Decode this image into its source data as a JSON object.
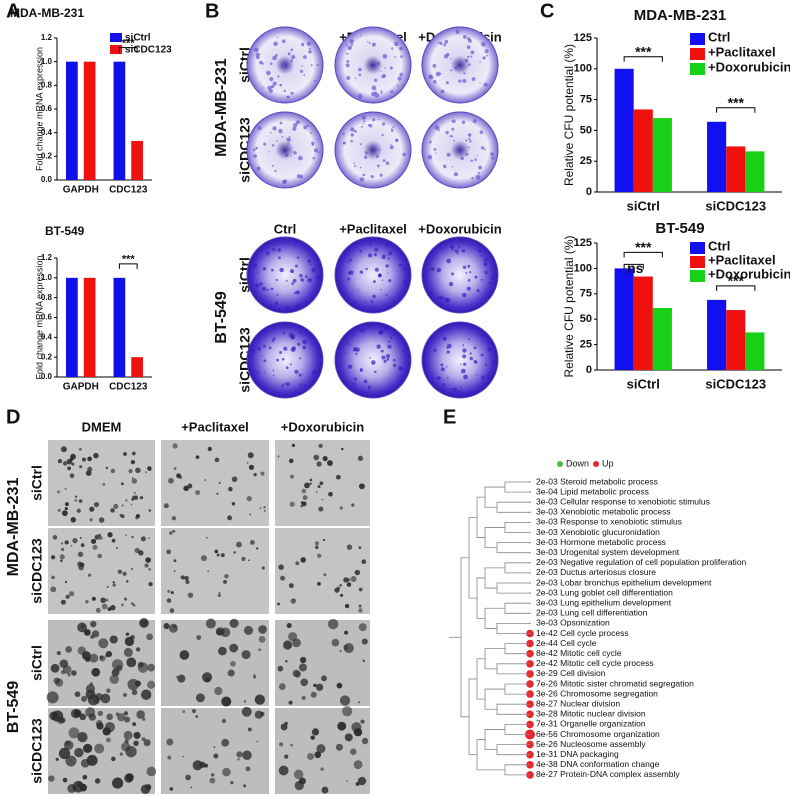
{
  "panel_labels": [
    "A",
    "B",
    "C",
    "D",
    "E"
  ],
  "chart_data": [
    {
      "type": "bar",
      "title": "MDA-MB-231",
      "y_label": "Fold change mRNA expression",
      "categories": [
        "GAPDH",
        "CDC123"
      ],
      "series": [
        {
          "name": "siCtrl",
          "color": "#1010e8",
          "values": [
            1.0,
            1.0
          ]
        },
        {
          "name": "siCDC123",
          "color": "#f01010",
          "values": [
            1.0,
            0.33
          ]
        }
      ],
      "ylim": [
        0,
        1.2
      ],
      "yticks": [
        {
          "value": 0,
          "label": "0.0"
        },
        {
          "value": 0.2,
          "label": "0.2"
        },
        {
          "value": 0.4,
          "label": "0.4"
        },
        {
          "value": 0.6,
          "label": "0.6"
        },
        {
          "value": 0.8,
          "label": "0.8"
        },
        {
          "value": 1,
          "label": "1.0"
        },
        {
          "value": 1.2,
          "label": "1.2"
        }
      ],
      "annotations": [
        "***"
      ]
    },
    {
      "type": "bar",
      "title": "BT-549",
      "y_label": "Fold change mRNA expression",
      "categories": [
        "GAPDH",
        "CDC123"
      ],
      "series": [
        {
          "name": "siCtrl",
          "color": "#1010e8",
          "values": [
            1.0,
            1.0
          ]
        },
        {
          "name": "siCDC123",
          "color": "#f01010",
          "values": [
            1.0,
            0.2
          ]
        }
      ],
      "ylim": [
        0,
        1.2
      ],
      "yticks": [
        {
          "value": 0,
          "label": "0.0"
        },
        {
          "value": 0.2,
          "label": "0.2"
        },
        {
          "value": 0.4,
          "label": "0.4"
        },
        {
          "value": 0.6,
          "label": "0.6"
        },
        {
          "value": 0.8,
          "label": "0.8"
        },
        {
          "value": 1,
          "label": "1.0"
        },
        {
          "value": 1.2,
          "label": "1.2"
        }
      ],
      "annotations": [
        "***"
      ]
    },
    {
      "type": "bar",
      "title": "MDA-MB-231",
      "y_label": "Relative CFU potential (%)",
      "categories": [
        "siCtrl",
        "siCDC123"
      ],
      "series": [
        {
          "name": "Ctrl",
          "color": "#1010f0",
          "values": [
            100,
            57
          ]
        },
        {
          "name": "+Paclitaxel",
          "color": "#f01010",
          "values": [
            67,
            37
          ]
        },
        {
          "name": "+Doxorubicin",
          "color": "#18d018",
          "values": [
            60,
            33
          ]
        }
      ],
      "ylim": [
        0,
        125
      ],
      "yticks": [
        0,
        25,
        50,
        75,
        100,
        125
      ],
      "annotations": [
        "***",
        "***"
      ]
    },
    {
      "type": "bar",
      "title": "BT-549",
      "y_label": "Relative CFU potential (%)",
      "categories": [
        "siCtrl",
        "siCDC123"
      ],
      "series": [
        {
          "name": "Ctrl",
          "color": "#1010f0",
          "values": [
            100,
            69
          ]
        },
        {
          "name": "+Paclitaxel",
          "color": "#f01010",
          "values": [
            92,
            59
          ]
        },
        {
          "name": "+Doxorubicin",
          "color": "#18d018",
          "values": [
            61,
            37
          ]
        }
      ],
      "ylim": [
        0,
        125
      ],
      "yticks": [
        0,
        25,
        50,
        75,
        100,
        125
      ],
      "annotations": [
        "ns",
        "***",
        "***"
      ]
    }
  ],
  "colony_assay": {
    "columns": [
      "Ctrl",
      "+Paclitaxel",
      "+Doxorubicin"
    ],
    "row_groups": [
      {
        "name": "MDA-MB-231",
        "rows": [
          "siCtrl",
          "siCDC123"
        ]
      },
      {
        "name": "BT-549",
        "rows": [
          "siCtrl",
          "siCDC123"
        ]
      }
    ]
  },
  "sphere_assay": {
    "columns": [
      "DMEM",
      "+Paclitaxel",
      "+Doxorubicin"
    ],
    "row_groups": [
      {
        "name": "MDA-MB-231",
        "rows": [
          "siCtrl",
          "siCDC123"
        ]
      },
      {
        "name": "BT-549",
        "rows": [
          "siCtrl",
          "siCDC123"
        ]
      }
    ]
  },
  "enrichment": {
    "legend": [
      {
        "name": "Down",
        "color": "#4cb84c"
      },
      {
        "name": "Up",
        "color": "#e8262b"
      }
    ],
    "terms": [
      {
        "label": "2e-03 Steroid metabolic process",
        "legend_index": 0
      },
      {
        "label": "3e-04 Lipid metabolic process",
        "legend_index": 0
      },
      {
        "label": "3e-03 Cellular response to xenobiotic stimulus",
        "legend_index": 0
      },
      {
        "label": "3e-03 Xenobiotic metabolic process",
        "legend_index": 0
      },
      {
        "label": "3e-03 Response to xenobiotic stimulus",
        "legend_index": 0
      },
      {
        "label": "3e-03 Xenobiotic glucuronidation",
        "legend_index": 0
      },
      {
        "label": "3e-03 Hormone metabolic process",
        "legend_index": 0
      },
      {
        "label": "3e-03 Urogenital system development",
        "legend_index": 0
      },
      {
        "label": "2e-03 Negative regulation of cell population proliferation",
        "legend_index": 0
      },
      {
        "label": "2e-03 Ductus arteriosus closure",
        "legend_index": 0
      },
      {
        "label": "2e-03 Lobar bronchus epithelium development",
        "legend_index": 0
      },
      {
        "label": "2e-03 Lung goblet cell differentiation",
        "legend_index": 0
      },
      {
        "label": "3e-03 Lung epithelium development",
        "legend_index": 0
      },
      {
        "label": "2e-03 Lung cell differentiation",
        "legend_index": 0
      },
      {
        "label": "3e-03 Opsonization",
        "legend_index": 0
      },
      {
        "label": "1e-42 Cell cycle process",
        "legend_index": 1
      },
      {
        "label": "2e-44 Cell cycle",
        "legend_index": 1
      },
      {
        "label": "8e-42 Mitotic cell cycle",
        "legend_index": 1
      },
      {
        "label": "2e-42 Mitotic cell cycle process",
        "legend_index": 1
      },
      {
        "label": "3e-29 Cell division",
        "legend_index": 1
      },
      {
        "label": "7e-26 Mitotic sister chromatid segregation",
        "legend_index": 1
      },
      {
        "label": "3e-26 Chromosome segregation",
        "legend_index": 1
      },
      {
        "label": "8e-27 Nuclear division",
        "legend_index": 1
      },
      {
        "label": "3e-28 Mitotic nuclear division",
        "legend_index": 1
      },
      {
        "label": "7e-31 Organelle organization",
        "legend_index": 1
      },
      {
        "label": "6e-56 Chromosome organization",
        "legend_index": 1
      },
      {
        "label": "5e-26 Nucleosome assembly",
        "legend_index": 1
      },
      {
        "label": "1e-31 DNA packaging",
        "legend_index": 1
      },
      {
        "label": "4e-38 DNA conformation change",
        "legend_index": 1
      },
      {
        "label": "8e-27 Protein-DNA complex assembly",
        "legend_index": 1
      }
    ]
  }
}
